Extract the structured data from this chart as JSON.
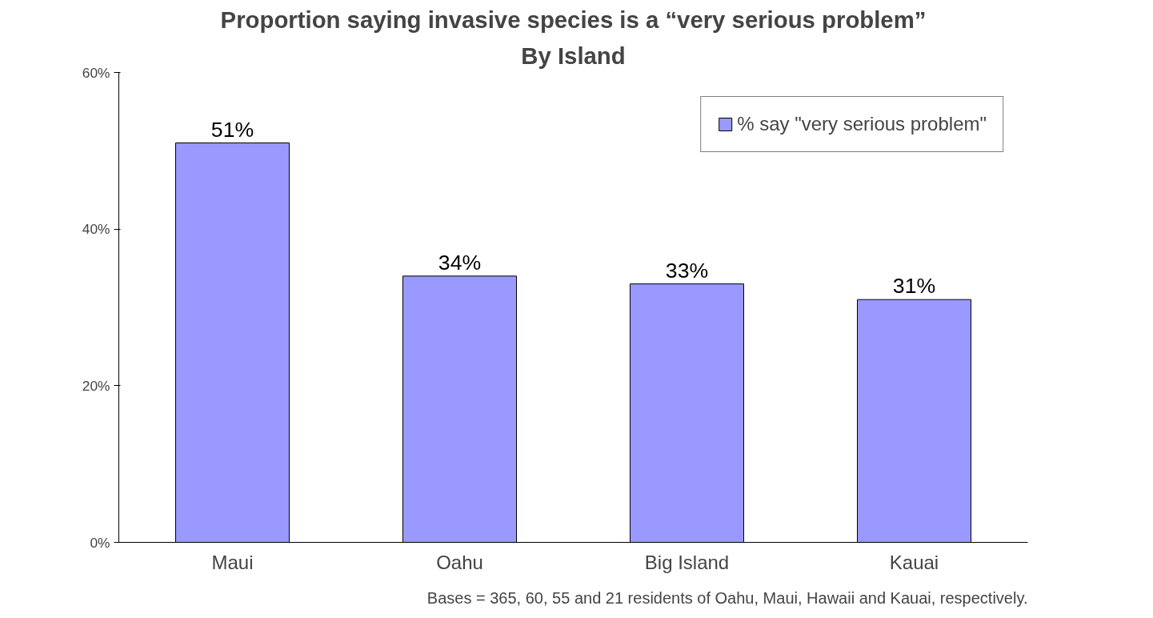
{
  "chart_data": {
    "type": "bar",
    "title": "Proportion saying invasive species is a “very serious problem”",
    "subtitle": "By Island",
    "categories": [
      "Maui",
      "Oahu",
      "Big Island",
      "Kauai"
    ],
    "series": [
      {
        "name": "% say \"very serious problem\"",
        "color": "#9999ff",
        "values": [
          51,
          34,
          33,
          31
        ],
        "value_labels": [
          "51%",
          "34%",
          "33%",
          "31%"
        ]
      }
    ],
    "ylim": [
      0,
      60
    ],
    "yticks": [
      {
        "value": 0,
        "label": "0%"
      },
      {
        "value": 20,
        "label": "20%"
      },
      {
        "value": 40,
        "label": "40%"
      },
      {
        "value": 60,
        "label": "60%"
      }
    ],
    "grid": false,
    "legend": "top right",
    "annotations": [
      "Bases = 365, 60, 55 and 21 residents of Oahu, Maui, Hawaii and Kauai, respectively."
    ]
  }
}
